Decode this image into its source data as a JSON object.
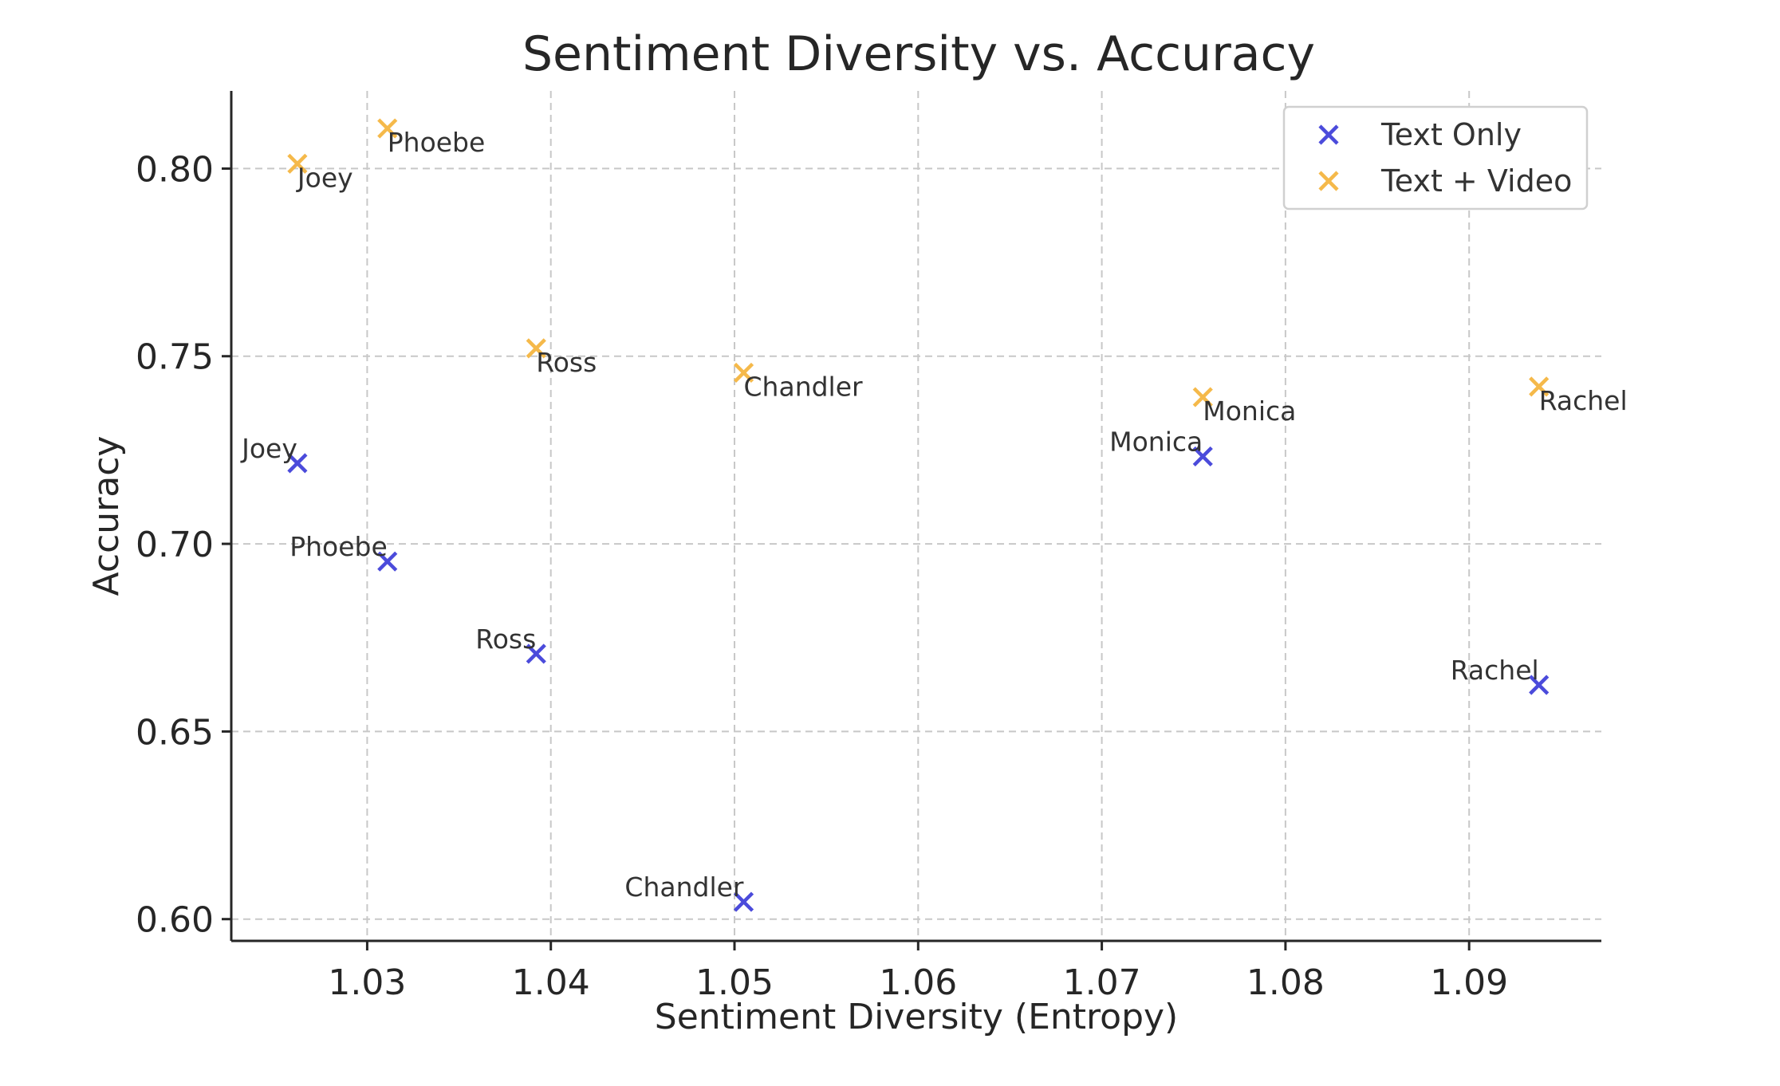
{
  "chart_data": {
    "type": "scatter",
    "title": "Sentiment Diversity vs. Accuracy",
    "xlabel": "Sentiment Diversity (Entropy)",
    "ylabel": "Accuracy",
    "xlim": [
      1.0226,
      1.0972
    ],
    "ylim": [
      0.5942,
      0.8207
    ],
    "xticks": [
      "1.03",
      "1.04",
      "1.05",
      "1.06",
      "1.07",
      "1.08",
      "1.09"
    ],
    "xtick_values": [
      1.03,
      1.04,
      1.05,
      1.06,
      1.07,
      1.08,
      1.09
    ],
    "yticks": [
      "0.60",
      "0.65",
      "0.70",
      "0.75",
      "0.80"
    ],
    "ytick_values": [
      0.6,
      0.65,
      0.7,
      0.75,
      0.8
    ],
    "grid": true,
    "legend_position": "top-right",
    "marker": "x",
    "series": [
      {
        "name": "Text Only",
        "color": "#4b4bdb",
        "label_side": "upper-left",
        "points": [
          {
            "label": "Joey",
            "x": 1.0262,
            "y": 0.7215
          },
          {
            "label": "Phoebe",
            "x": 1.0311,
            "y": 0.6953
          },
          {
            "label": "Ross",
            "x": 1.0392,
            "y": 0.6707
          },
          {
            "label": "Chandler",
            "x": 1.0505,
            "y": 0.6046
          },
          {
            "label": "Monica",
            "x": 1.0755,
            "y": 0.7233
          },
          {
            "label": "Rachel",
            "x": 1.0938,
            "y": 0.6624
          }
        ]
      },
      {
        "name": "Text + Video",
        "color": "#f5b94a",
        "label_side": "lower-right",
        "points": [
          {
            "label": "Joey",
            "x": 1.0262,
            "y": 0.8013
          },
          {
            "label": "Phoebe",
            "x": 1.0311,
            "y": 0.8107
          },
          {
            "label": "Ross",
            "x": 1.0392,
            "y": 0.7521
          },
          {
            "label": "Chandler",
            "x": 1.0505,
            "y": 0.7456
          },
          {
            "label": "Monica",
            "x": 1.0755,
            "y": 0.7391
          },
          {
            "label": "Rachel",
            "x": 1.0938,
            "y": 0.7419
          }
        ]
      }
    ]
  }
}
